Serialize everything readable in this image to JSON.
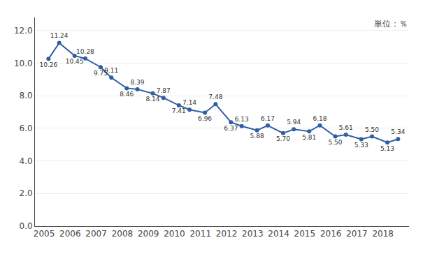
{
  "chart_data": {
    "type": "line",
    "x": [
      2005.17,
      2005.58,
      2006.17,
      2006.58,
      2007.17,
      2007.58,
      2008.17,
      2008.58,
      2009.17,
      2009.58,
      2010.17,
      2010.58,
      2011.17,
      2011.58,
      2012.17,
      2012.58,
      2013.17,
      2013.58,
      2014.17,
      2014.58,
      2015.17,
      2015.58,
      2016.17,
      2016.58,
      2017.17,
      2017.58,
      2018.17,
      2018.58
    ],
    "values": [
      10.26,
      11.24,
      10.45,
      10.28,
      9.75,
      9.11,
      8.46,
      8.39,
      8.14,
      7.87,
      7.41,
      7.14,
      6.96,
      7.48,
      6.37,
      6.13,
      5.88,
      6.17,
      5.7,
      5.94,
      5.81,
      6.18,
      5.5,
      5.61,
      5.33,
      5.5,
      5.13,
      5.34
    ],
    "value_labels": [
      "10.26",
      "11.24",
      "10.45",
      "10.28",
      "9.75",
      "9.11",
      "8.46",
      "8.39",
      "8.14",
      "7.87",
      "7.41",
      "7.14",
      "6.96",
      "7.48",
      "6.37",
      "6.13",
      "5.88",
      "6.17",
      "5.70",
      "5.94",
      "5.81",
      "6.18",
      "5.50",
      "5.61",
      "5.33",
      "5.50",
      "5.13",
      "5.34"
    ],
    "data_labels": true,
    "color": "#2e5fa3",
    "marker": "circle",
    "xlim": [
      2004.65,
      2019.0
    ],
    "xticks": [
      2005,
      2006,
      2007,
      2008,
      2009,
      2010,
      2011,
      2012,
      2013,
      2014,
      2015,
      2016,
      2017,
      2018
    ],
    "ylim": [
      0.0,
      12.8
    ],
    "yticks": [
      {
        "value": 0,
        "label": "0.0"
      },
      {
        "value": 2,
        "label": "2.0"
      },
      {
        "value": 4,
        "label": "4.0"
      },
      {
        "value": 6,
        "label": "6.0"
      },
      {
        "value": 8,
        "label": "8.0"
      },
      {
        "value": 10,
        "label": "10.0"
      },
      {
        "value": 12,
        "label": "12.0"
      }
    ],
    "grid": true,
    "annotations": [
      "単位：％"
    ]
  }
}
